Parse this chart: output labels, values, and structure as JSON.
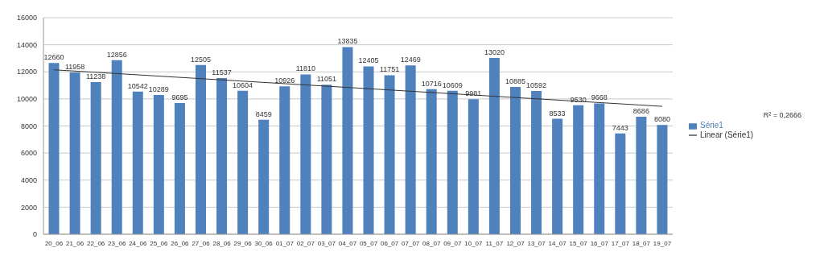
{
  "chart_data": {
    "type": "bar",
    "categories": [
      "20_06",
      "21_06",
      "22_06",
      "23_06",
      "24_06",
      "25_06",
      "26_06",
      "27_06",
      "28_06",
      "29_06",
      "30_06",
      "01_07",
      "02_07",
      "03_07",
      "04_07",
      "05_07",
      "06_07",
      "07_07",
      "08_07",
      "09_07",
      "10_07",
      "11_07",
      "12_07",
      "13_07",
      "14_07",
      "15_07",
      "16_07",
      "17_07",
      "18_07",
      "19_07"
    ],
    "series": [
      {
        "name": "Série1",
        "color": "#4f81bd",
        "values": [
          12660,
          11958,
          11238,
          12856,
          10542,
          10289,
          9695,
          12505,
          11537,
          10604,
          8459,
          10926,
          11810,
          11051,
          13835,
          12405,
          11751,
          12469,
          10716,
          10609,
          9981,
          13020,
          10885,
          10592,
          8533,
          9530,
          9668,
          7443,
          8686,
          8080
        ],
        "value_labels": [
          "12660",
          "11958",
          "11238",
          "12856",
          "10542",
          "10289",
          "9695",
          "12505",
          "11537",
          "10604",
          "8459",
          "10926",
          "11810",
          "11051",
          "13835",
          "12405",
          "11751",
          "12469",
          "10716",
          "10609",
          "9981",
          "13020",
          "10885",
          "10592",
          "8533",
          "9530",
          "9668",
          "7443",
          "8686",
          "8080"
        ]
      },
      {
        "name": "Linear (Série1)",
        "type": "line",
        "color": "#333333",
        "x": [
          "20_06",
          "19_07"
        ],
        "values": [
          12150,
          9450
        ]
      }
    ],
    "ylim": [
      0,
      16000
    ],
    "yticks": [
      0,
      2000,
      4000,
      6000,
      8000,
      10000,
      12000,
      14000,
      16000
    ],
    "grid": "y",
    "legend": "right",
    "marker": "none",
    "annotations": [
      "R² = 0,2666"
    ]
  }
}
